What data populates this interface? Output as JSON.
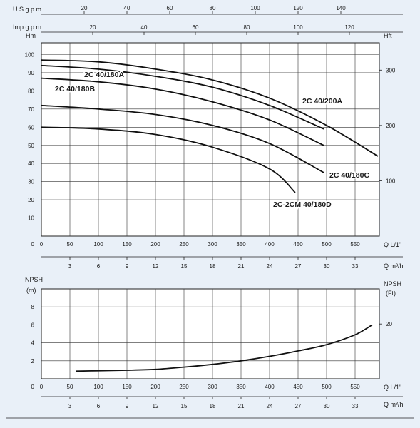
{
  "chart_data": [
    {
      "type": "line",
      "title": "",
      "top_axes": [
        {
          "label": "U.S.g.p.m.",
          "ticks": [
            "20",
            "40",
            "60",
            "80",
            "100",
            "120",
            "140"
          ]
        },
        {
          "label": "Imp.g.p.m",
          "ticks": [
            "20",
            "40",
            "60",
            "80",
            "100",
            "120"
          ]
        }
      ],
      "ylabel_left": "Hm",
      "ylabel_right": "Hft",
      "yticks_left": [
        "10",
        "20",
        "30",
        "40",
        "50",
        "60",
        "70",
        "80",
        "90",
        "100"
      ],
      "yticks_right": [
        "100",
        "200",
        "300"
      ],
      "xlabel": "Q L/1'",
      "xlabel2": "Q m³/h",
      "xticks": [
        "0",
        "50",
        "100",
        "150",
        "200",
        "250",
        "300",
        "350",
        "400",
        "450",
        "500",
        "550"
      ],
      "xticks2": [
        "3",
        "6",
        "9",
        "12",
        "15",
        "18",
        "21",
        "24",
        "27",
        "30",
        "33"
      ],
      "xlim": [
        0,
        590
      ],
      "ylim": [
        0,
        110
      ],
      "series": [
        {
          "name": "2C 40/200A",
          "x": [
            0,
            100,
            200,
            300,
            400,
            500,
            590
          ],
          "y": [
            97,
            96,
            92,
            86,
            76,
            61,
            44
          ]
        },
        {
          "name": "2C 40/180A",
          "x": [
            0,
            100,
            200,
            300,
            400,
            495
          ],
          "y": [
            94,
            92,
            88,
            82,
            72,
            59
          ]
        },
        {
          "name": "2C 40/180B",
          "x": [
            0,
            100,
            200,
            300,
            400,
            495
          ],
          "y": [
            87,
            85,
            81,
            74,
            64,
            50
          ]
        },
        {
          "name": "2C 40/180C",
          "x": [
            0,
            100,
            200,
            300,
            400,
            495
          ],
          "y": [
            72,
            70,
            67,
            61,
            51,
            35
          ]
        },
        {
          "name": "2C-2CM 40/180D",
          "x": [
            0,
            100,
            200,
            300,
            400,
            445
          ],
          "y": [
            60,
            59,
            56,
            49,
            37,
            24
          ]
        }
      ]
    },
    {
      "type": "line",
      "title": "",
      "ylabel_left": "NPSH",
      "ylabel_left_unit": "(m)",
      "ylabel_right": "NPSH",
      "ylabel_right_unit": "(Ft)",
      "yticks_left": [
        "2",
        "4",
        "6",
        "8"
      ],
      "yticks_right": [
        "20"
      ],
      "xlabel": "Q L/1'",
      "xlabel2": "Q m³/h",
      "xticks": [
        "0",
        "50",
        "100",
        "150",
        "200",
        "250",
        "300",
        "350",
        "400",
        "450",
        "500",
        "550"
      ],
      "xticks2": [
        "3",
        "6",
        "9",
        "12",
        "15",
        "18",
        "21",
        "24",
        "27",
        "30",
        "33"
      ],
      "xlim": [
        0,
        590
      ],
      "ylim": [
        0,
        10
      ],
      "series": [
        {
          "name": "",
          "x": [
            60,
            100,
            150,
            200,
            250,
            300,
            350,
            400,
            450,
            500,
            550,
            580
          ],
          "y": [
            0.85,
            0.9,
            0.95,
            1.05,
            1.3,
            1.6,
            2.0,
            2.5,
            3.1,
            3.8,
            4.9,
            6.0
          ]
        }
      ]
    }
  ]
}
